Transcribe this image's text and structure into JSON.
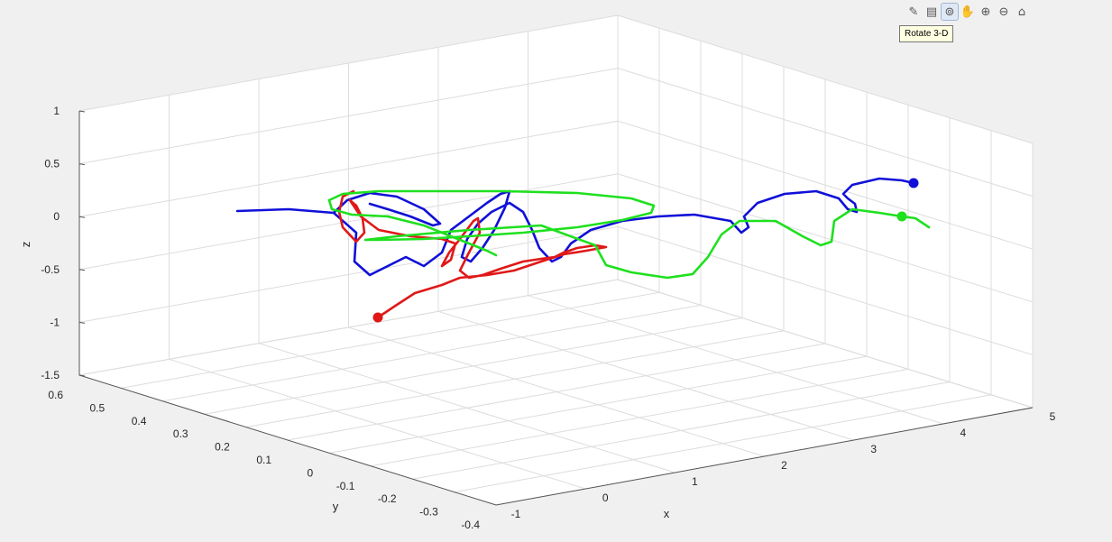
{
  "toolbar": {
    "buttons": [
      {
        "name": "brush-icon",
        "glyph": "✎"
      },
      {
        "name": "insert-legend-icon",
        "glyph": "▤"
      },
      {
        "name": "rotate-3d-icon",
        "glyph": "⊚"
      },
      {
        "name": "pan-hand-icon",
        "glyph": "✋"
      },
      {
        "name": "zoom-in-icon",
        "glyph": "⊕"
      },
      {
        "name": "zoom-out-icon",
        "glyph": "⊖"
      },
      {
        "name": "home-icon",
        "glyph": "⌂"
      }
    ],
    "tooltip": "Rotate 3-D"
  },
  "chart_data": {
    "type": "line3d",
    "xlabel": "x",
    "ylabel": "y",
    "zlabel": "z",
    "xlim": [
      -1,
      5
    ],
    "ylim": [
      -0.4,
      0.6
    ],
    "zlim": [
      -1.5,
      1
    ],
    "xticks": [
      "-1",
      "0",
      "1",
      "2",
      "3",
      "4",
      "5"
    ],
    "yticks": [
      "0.6",
      "0.5",
      "0.4",
      "0.3",
      "0.2",
      "0.1",
      "0",
      "-0.1",
      "-0.2",
      "-0.3",
      "-0.4"
    ],
    "zticks": [
      "1",
      "0.5",
      "0",
      "-0.5",
      "-1",
      "-1.5"
    ],
    "grid": true,
    "series": [
      {
        "color": "#1010d8",
        "marker_end": "start",
        "points": [
          [
            263,
            234
          ],
          [
            320,
            232
          ],
          [
            370,
            236
          ],
          [
            395,
            258
          ],
          [
            393,
            290
          ],
          [
            410,
            305
          ],
          [
            430,
            295
          ],
          [
            450,
            285
          ],
          [
            470,
            295
          ],
          [
            490,
            280
          ],
          [
            500,
            255
          ],
          [
            520,
            240
          ],
          [
            540,
            225
          ],
          [
            555,
            215
          ],
          [
            565,
            212
          ],
          [
            560,
            230
          ],
          [
            548,
            255
          ],
          [
            535,
            275
          ],
          [
            522,
            290
          ],
          [
            512,
            285
          ],
          [
            518,
            265
          ],
          [
            530,
            248
          ],
          [
            545,
            235
          ],
          [
            565,
            225
          ],
          [
            580,
            235
          ],
          [
            590,
            255
          ],
          [
            598,
            275
          ],
          [
            612,
            290
          ],
          [
            622,
            285
          ],
          [
            633,
            270
          ],
          [
            655,
            255
          ],
          [
            690,
            245
          ],
          [
            730,
            240
          ],
          [
            770,
            238
          ],
          [
            810,
            245
          ],
          [
            822,
            258
          ],
          [
            830,
            252
          ],
          [
            825,
            240
          ],
          [
            840,
            225
          ],
          [
            870,
            215
          ],
          [
            905,
            212
          ],
          [
            930,
            220
          ],
          [
            940,
            232
          ],
          [
            950,
            235
          ],
          [
            948,
            226
          ],
          [
            940,
            220
          ],
          [
            935,
            215
          ],
          [
            945,
            205
          ],
          [
            975,
            198
          ],
          [
            1000,
            200
          ],
          [
            1013,
            203
          ]
        ],
        "extra_loop": [
          [
            370,
            236
          ],
          [
            385,
            222
          ],
          [
            410,
            214
          ],
          [
            440,
            218
          ],
          [
            470,
            232
          ],
          [
            488,
            248
          ],
          [
            480,
            250
          ],
          [
            455,
            240
          ],
          [
            430,
            232
          ],
          [
            410,
            226
          ]
        ]
      },
      {
        "color": "#e01818",
        "marker_end": "end",
        "points": [
          [
            392,
            212
          ],
          [
            380,
            218
          ],
          [
            376,
            235
          ],
          [
            380,
            252
          ],
          [
            395,
            268
          ],
          [
            404,
            258
          ],
          [
            402,
            242
          ],
          [
            395,
            228
          ],
          [
            388,
            222
          ],
          [
            400,
            240
          ],
          [
            420,
            255
          ],
          [
            455,
            262
          ],
          [
            490,
            265
          ],
          [
            505,
            270
          ],
          [
            500,
            288
          ],
          [
            490,
            295
          ],
          [
            498,
            280
          ],
          [
            510,
            265
          ],
          [
            525,
            245
          ],
          [
            530,
            242
          ],
          [
            532,
            258
          ],
          [
            520,
            280
          ],
          [
            510,
            300
          ],
          [
            520,
            308
          ],
          [
            535,
            305
          ],
          [
            555,
            298
          ],
          [
            580,
            290
          ],
          [
            600,
            287
          ],
          [
            615,
            285
          ],
          [
            625,
            280
          ],
          [
            640,
            275
          ],
          [
            660,
            272
          ],
          [
            672,
            274
          ],
          [
            650,
            278
          ],
          [
            625,
            282
          ],
          [
            600,
            290
          ],
          [
            570,
            300
          ],
          [
            540,
            305
          ],
          [
            510,
            308
          ],
          [
            490,
            316
          ],
          [
            460,
            325
          ],
          [
            440,
            338
          ],
          [
            428,
            346
          ],
          [
            419,
            352
          ]
        ]
      },
      {
        "color": "#1ee01e",
        "marker_end": "end",
        "points": [
          [
            365,
            222
          ],
          [
            380,
            215
          ],
          [
            420,
            212
          ],
          [
            480,
            212
          ],
          [
            560,
            212
          ],
          [
            640,
            214
          ],
          [
            700,
            220
          ],
          [
            725,
            228
          ],
          [
            722,
            236
          ],
          [
            690,
            244
          ],
          [
            640,
            252
          ],
          [
            580,
            258
          ],
          [
            520,
            262
          ],
          [
            470,
            265
          ],
          [
            420,
            266
          ],
          [
            405,
            266
          ],
          [
            440,
            262
          ],
          [
            520,
            255
          ],
          [
            600,
            250
          ],
          [
            660,
            272
          ],
          [
            672,
            294
          ],
          [
            700,
            302
          ],
          [
            740,
            308
          ],
          [
            768,
            304
          ],
          [
            785,
            285
          ],
          [
            800,
            260
          ],
          [
            820,
            245
          ],
          [
            860,
            245
          ],
          [
            890,
            262
          ],
          [
            910,
            272
          ],
          [
            922,
            268
          ],
          [
            925,
            245
          ],
          [
            945,
            232
          ],
          [
            975,
            236
          ],
          [
            1000,
            240
          ],
          [
            1015,
            242
          ],
          [
            1030,
            252
          ]
        ],
        "extra_loop": [
          [
            365,
            222
          ],
          [
            368,
            232
          ],
          [
            390,
            238
          ],
          [
            430,
            240
          ],
          [
            470,
            250
          ],
          [
            500,
            262
          ],
          [
            520,
            270
          ],
          [
            540,
            278
          ],
          [
            550,
            283
          ]
        ]
      }
    ]
  }
}
